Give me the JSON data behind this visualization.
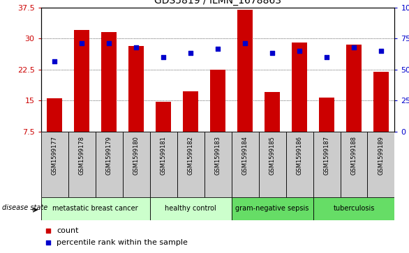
{
  "title": "GDS5819 / ILMN_1678863",
  "samples": [
    "GSM1599177",
    "GSM1599178",
    "GSM1599179",
    "GSM1599180",
    "GSM1599181",
    "GSM1599182",
    "GSM1599183",
    "GSM1599184",
    "GSM1599185",
    "GSM1599186",
    "GSM1599187",
    "GSM1599188",
    "GSM1599189"
  ],
  "bar_values": [
    15.5,
    32.0,
    31.5,
    28.2,
    14.7,
    17.2,
    22.5,
    37.0,
    17.0,
    29.0,
    15.8,
    28.5,
    22.0
  ],
  "dot_values": [
    24.5,
    28.8,
    28.8,
    27.8,
    25.5,
    26.5,
    27.5,
    28.8,
    26.5,
    27.0,
    25.5,
    27.8,
    27.0
  ],
  "ylim": [
    7.5,
    37.5
  ],
  "yticks_left": [
    7.5,
    15.0,
    22.5,
    30.0,
    37.5
  ],
  "yticks_right": [
    0,
    25,
    50,
    75,
    100
  ],
  "bar_color": "#cc0000",
  "dot_color": "#0000cc",
  "groups": [
    {
      "label": "metastatic breast cancer",
      "start": 0,
      "end": 3,
      "color": "#ccffcc"
    },
    {
      "label": "healthy control",
      "start": 4,
      "end": 6,
      "color": "#ccffcc"
    },
    {
      "label": "gram-negative sepsis",
      "start": 7,
      "end": 9,
      "color": "#66dd66"
    },
    {
      "label": "tuberculosis",
      "start": 10,
      "end": 12,
      "color": "#66dd66"
    }
  ],
  "sample_cell_color": "#cccccc",
  "disease_state_label": "disease state",
  "legend_count_label": "count",
  "legend_pct_label": "percentile rank within the sample"
}
